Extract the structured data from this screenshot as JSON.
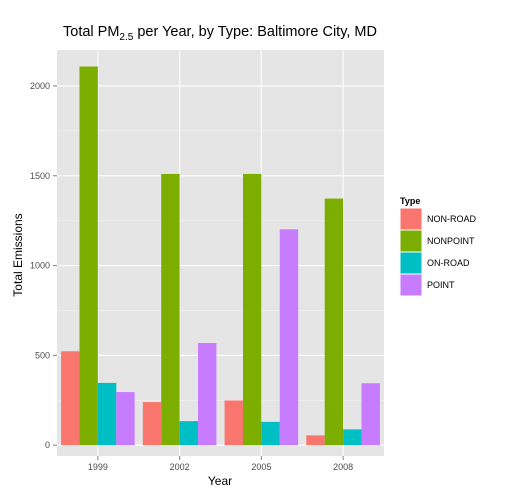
{
  "chart_data": {
    "type": "bar",
    "title": {
      "main": "Total PM",
      "subscript": "2.5",
      "rest": " per Year, by Type: Baltimore City, MD"
    },
    "xlabel": "Year",
    "ylabel": "Total Emissions",
    "categories": [
      "1999",
      "2002",
      "2005",
      "2008"
    ],
    "y_ticks": [
      0,
      500,
      1000,
      1500,
      2000
    ],
    "y_tick_labels": [
      "0",
      "500",
      "1000",
      "1500",
      "2000"
    ],
    "ylim": [
      -60,
      2200
    ],
    "grid": true,
    "legend_placement": "right",
    "legend_title": "Type",
    "series": [
      {
        "name": "NON-ROAD",
        "color": "#F8766D",
        "values": [
          523,
          240,
          249,
          55
        ]
      },
      {
        "name": "NONPOINT",
        "color": "#7CAE00",
        "values": [
          2108,
          1510,
          1510,
          1373
        ]
      },
      {
        "name": "ON-ROAD",
        "color": "#00BFC4",
        "values": [
          347,
          134,
          130,
          88
        ]
      },
      {
        "name": "POINT",
        "color": "#C77CFF",
        "values": [
          296,
          569,
          1202,
          345
        ]
      }
    ]
  }
}
